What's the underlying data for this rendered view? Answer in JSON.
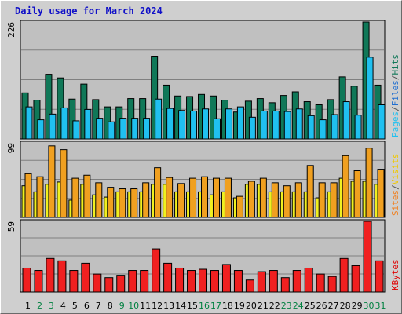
{
  "chart_data": {
    "type": "bar",
    "title": "Daily usage for March 2024",
    "days": [
      "1",
      "2",
      "3",
      "4",
      "5",
      "6",
      "7",
      "8",
      "9",
      "10",
      "11",
      "12",
      "13",
      "14",
      "15",
      "16",
      "17",
      "18",
      "19",
      "20",
      "21",
      "22",
      "23",
      "24",
      "25",
      "26",
      "27",
      "28",
      "29",
      "30",
      "31"
    ],
    "weekend_days": [
      "2",
      "3",
      "9",
      "10",
      "16",
      "17",
      "23",
      "24",
      "30",
      "31"
    ],
    "panels": {
      "hits_pages_files": {
        "max_label": "226",
        "ylim": [
          0,
          226
        ],
        "series": [
          {
            "name": "Hits",
            "color": "#107858",
            "values": [
              89,
              75,
              125,
              118,
              77,
              106,
              76,
              62,
              62,
              78,
              78,
              160,
              104,
              83,
              82,
              86,
              83,
              75,
              52,
              73,
              78,
              70,
              84,
              91,
              72,
              66,
              76,
              120,
              102,
              226,
              104
            ]
          },
          {
            "name": "Files",
            "color": "#20c0f0",
            "values": [
              62,
              37,
              48,
              60,
              35,
              57,
              40,
              33,
              40,
              40,
              40,
              77,
              59,
              55,
              54,
              58,
              39,
              58,
              62,
              42,
              54,
              54,
              53,
              58,
              45,
              37,
              47,
              72,
              46,
              158,
              66
            ]
          },
          {
            "name": "Pages",
            "color": "#20c0f0",
            "values": []
          }
        ],
        "legend": [
          "Pages",
          "/",
          "Files",
          "/",
          "Hits"
        ],
        "legend_colors": [
          "#20c0f0",
          "#505050",
          "#1f6ed0",
          "#505050",
          "#107858"
        ]
      },
      "visits_sites": {
        "max_label": "99",
        "ylim": [
          0,
          99
        ],
        "series": [
          {
            "name": "Visits",
            "color": "#f0a020",
            "values": [
              58,
              54,
              95,
              90,
              52,
              56,
              46,
              40,
              38,
              38,
              46,
              66,
              53,
              45,
              52,
              54,
              52,
              52,
              28,
              48,
              52,
              46,
              42,
              46,
              69,
              46,
              46,
              82,
              62,
              92,
              64
            ]
          },
          {
            "name": "Sites",
            "color": "#f0f020",
            "values": [
              42,
              34,
              44,
              47,
              23,
              44,
              30,
              27,
              34,
              34,
              34,
              44,
              44,
              34,
              34,
              34,
              30,
              34,
              26,
              44,
              44,
              34,
              34,
              34,
              34,
              26,
              34,
              52,
              48,
              48,
              44
            ]
          }
        ],
        "legend": [
          "Sites",
          "/",
          "Visits"
        ],
        "legend_colors": [
          "#f08020",
          "#505050",
          "#f0c800"
        ]
      },
      "kbytes": {
        "max_label": "59",
        "ylim": [
          0,
          59
        ],
        "series": [
          {
            "name": "KBytes",
            "color": "#f02020",
            "values": [
              20,
              18,
              28,
              26,
              18,
              24,
              15,
              12,
              14,
              18,
              18,
              36,
              24,
              20,
              18,
              19,
              18,
              23,
              18,
              10,
              17,
              18,
              12,
              18,
              20,
              15,
              13,
              28,
              22,
              59,
              26
            ]
          }
        ],
        "legend": [
          "KBytes"
        ],
        "legend_colors": [
          "#e00000"
        ]
      }
    },
    "colors": {
      "weekday_label": "#000000",
      "weekend_label": "#008040",
      "plot_bg": "#c0c0c0",
      "grid": "#808080"
    },
    "grid": true
  }
}
